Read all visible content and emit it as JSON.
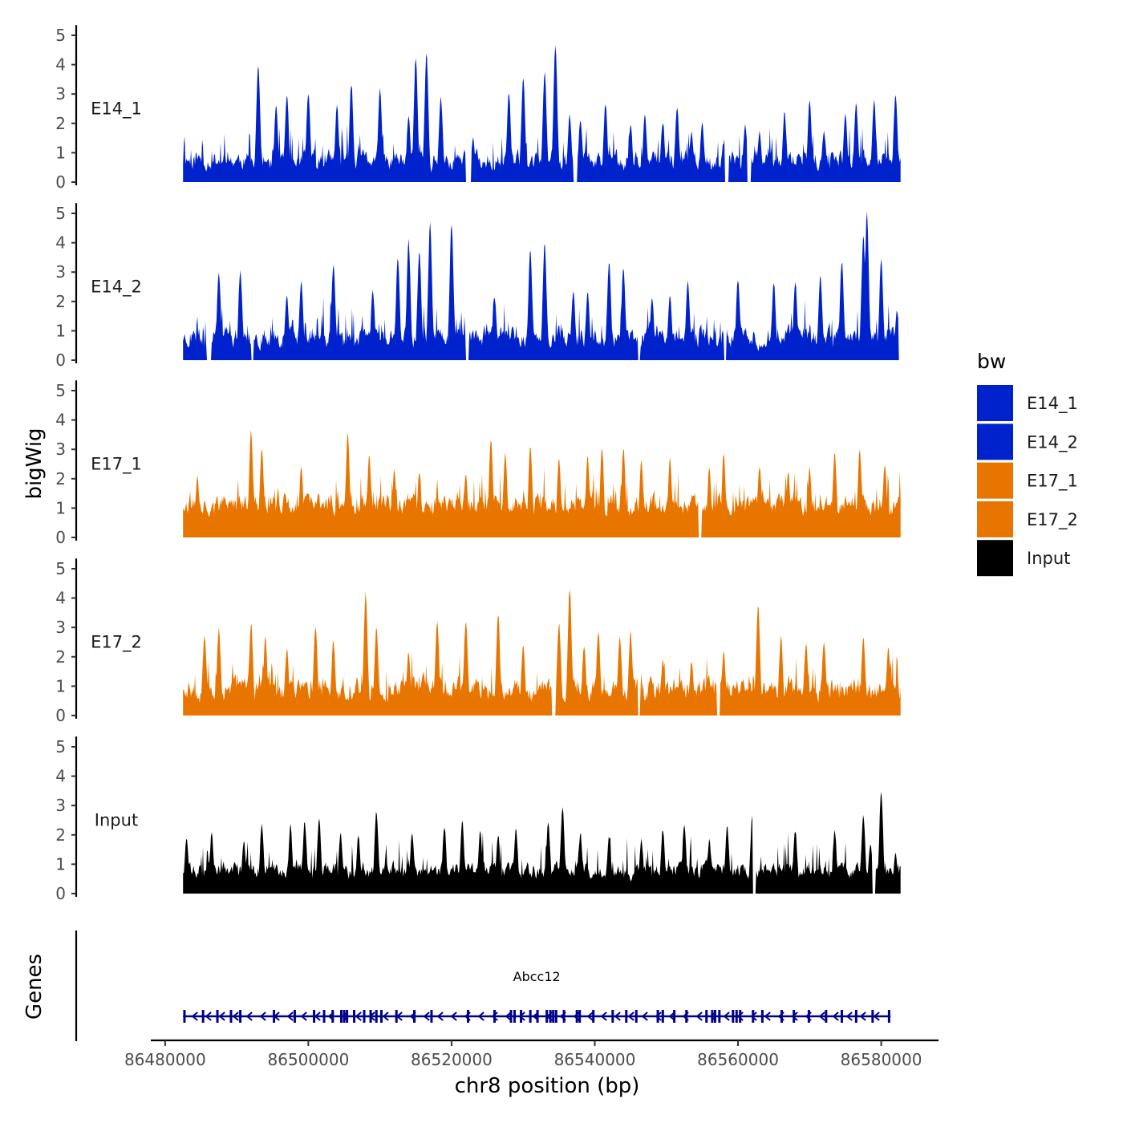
{
  "chart_data": {
    "type": "area",
    "title": "",
    "ylabel": "bigWig",
    "genes_label": "Genes",
    "xlabel": "chr8 position (bp)",
    "xlim": [
      86482500,
      86582700
    ],
    "axis_range": [
      86478000,
      86588000
    ],
    "ylim": [
      0,
      5.2
    ],
    "yticks": [
      0,
      1,
      2,
      3,
      4,
      5
    ],
    "xticks": [
      86480000,
      86500000,
      86520000,
      86540000,
      86560000,
      86580000
    ],
    "tracks": [
      {
        "name": "E14_1",
        "color": "#0022CC",
        "seed": 11,
        "base": 0.75,
        "noise": 0.55,
        "peaks": [
          [
            86493000,
            3.9
          ],
          [
            86495500,
            2.5
          ],
          [
            86497000,
            2.9
          ],
          [
            86500000,
            3.0
          ],
          [
            86504000,
            2.5
          ],
          [
            86506000,
            3.3
          ],
          [
            86510000,
            3.1
          ],
          [
            86514000,
            2.2
          ],
          [
            86515000,
            4.2
          ],
          [
            86516500,
            4.3
          ],
          [
            86518500,
            2.8
          ],
          [
            86523000,
            1.4
          ],
          [
            86528000,
            3.0
          ],
          [
            86530000,
            3.5
          ],
          [
            86533000,
            3.7
          ],
          [
            86534500,
            4.6
          ],
          [
            86536500,
            2.2
          ],
          [
            86538000,
            2.1
          ],
          [
            86541500,
            2.6
          ],
          [
            86545000,
            1.9
          ],
          [
            86547000,
            2.2
          ],
          [
            86549500,
            2.0
          ],
          [
            86551500,
            2.5
          ],
          [
            86553500,
            1.6
          ],
          [
            86555000,
            1.9
          ],
          [
            86558000,
            1.3
          ],
          [
            86561000,
            1.9
          ],
          [
            86563000,
            1.6
          ],
          [
            86566500,
            2.3
          ],
          [
            86570000,
            2.7
          ],
          [
            86572000,
            1.7
          ],
          [
            86575000,
            2.2
          ],
          [
            86576500,
            2.6
          ],
          [
            86579000,
            2.7
          ],
          [
            86582000,
            2.9
          ]
        ],
        "troughs": [
          [
            86522000,
            86522700
          ],
          [
            86537000,
            86537600
          ],
          [
            86558200,
            86558700
          ],
          [
            86561300,
            86561800
          ]
        ]
      },
      {
        "name": "E14_2",
        "color": "#0022CC",
        "seed": 23,
        "base": 0.8,
        "noise": 0.6,
        "peaks": [
          [
            86487500,
            2.9
          ],
          [
            86490500,
            3.0
          ],
          [
            86497000,
            2.1
          ],
          [
            86499000,
            2.6
          ],
          [
            86503500,
            3.2
          ],
          [
            86509000,
            2.3
          ],
          [
            86512500,
            3.4
          ],
          [
            86514000,
            4.0
          ],
          [
            86515500,
            3.7
          ],
          [
            86517000,
            4.6
          ],
          [
            86520000,
            4.6
          ],
          [
            86526000,
            2.1
          ],
          [
            86531000,
            3.7
          ],
          [
            86533000,
            3.9
          ],
          [
            86537000,
            2.3
          ],
          [
            86539000,
            2.2
          ],
          [
            86542000,
            3.3
          ],
          [
            86544000,
            3.1
          ],
          [
            86548000,
            2.0
          ],
          [
            86550500,
            2.1
          ],
          [
            86553000,
            2.6
          ],
          [
            86560000,
            2.7
          ],
          [
            86565000,
            2.6
          ],
          [
            86568000,
            2.6
          ],
          [
            86571500,
            2.8
          ],
          [
            86574500,
            3.3
          ],
          [
            86577500,
            4.2
          ],
          [
            86578000,
            5.0
          ],
          [
            86580000,
            3.4
          ],
          [
            86582200,
            1.6
          ]
        ],
        "troughs": [
          [
            86485800,
            86486400
          ],
          [
            86492000,
            86492400
          ],
          [
            86522000,
            86522400
          ],
          [
            86546000,
            86546400
          ],
          [
            86558000,
            86558400
          ],
          [
            86582400,
            86582700
          ]
        ]
      },
      {
        "name": "E17_1",
        "color": "#E87500",
        "seed": 37,
        "base": 1.15,
        "noise": 0.6,
        "peaks": [
          [
            86484500,
            2.0
          ],
          [
            86492000,
            3.6
          ],
          [
            86493500,
            3.0
          ],
          [
            86499000,
            2.3
          ],
          [
            86505500,
            3.5
          ],
          [
            86508500,
            2.8
          ],
          [
            86512000,
            2.2
          ],
          [
            86515500,
            2.2
          ],
          [
            86522000,
            2.1
          ],
          [
            86525500,
            3.3
          ],
          [
            86527500,
            2.8
          ],
          [
            86531000,
            3.1
          ],
          [
            86535000,
            2.6
          ],
          [
            86539000,
            2.7
          ],
          [
            86541000,
            3.0
          ],
          [
            86544000,
            3.0
          ],
          [
            86546500,
            2.6
          ],
          [
            86550500,
            2.6
          ],
          [
            86556000,
            2.3
          ],
          [
            86558000,
            2.8
          ],
          [
            86563000,
            2.4
          ],
          [
            86567000,
            2.2
          ],
          [
            86570000,
            2.3
          ],
          [
            86573500,
            2.8
          ],
          [
            86577000,
            2.9
          ],
          [
            86580500,
            2.4
          ]
        ],
        "troughs": [
          [
            86554500,
            86554900
          ]
        ]
      },
      {
        "name": "E17_2",
        "color": "#E87500",
        "seed": 53,
        "base": 0.9,
        "noise": 0.65,
        "peaks": [
          [
            86485500,
            2.7
          ],
          [
            86487500,
            2.9
          ],
          [
            86492000,
            3.1
          ],
          [
            86494000,
            2.6
          ],
          [
            86497000,
            2.2
          ],
          [
            86501000,
            3.0
          ],
          [
            86503500,
            2.5
          ],
          [
            86508000,
            4.1
          ],
          [
            86509500,
            2.9
          ],
          [
            86514000,
            2.1
          ],
          [
            86518000,
            3.2
          ],
          [
            86522000,
            3.2
          ],
          [
            86526500,
            3.4
          ],
          [
            86530000,
            2.3
          ],
          [
            86535000,
            3.1
          ],
          [
            86536500,
            4.3
          ],
          [
            86538500,
            2.3
          ],
          [
            86540500,
            2.8
          ],
          [
            86543500,
            2.6
          ],
          [
            86545000,
            2.8
          ],
          [
            86549500,
            1.8
          ],
          [
            86553500,
            1.8
          ],
          [
            86558000,
            2.1
          ],
          [
            86562800,
            3.7
          ],
          [
            86566000,
            2.6
          ],
          [
            86569500,
            2.4
          ],
          [
            86572000,
            2.5
          ],
          [
            86577500,
            2.6
          ],
          [
            86581000,
            2.3
          ]
        ],
        "troughs": [
          [
            86534000,
            86534500
          ],
          [
            86546000,
            86546400
          ],
          [
            86557000,
            86557500
          ]
        ]
      },
      {
        "name": "Input",
        "color": "#000000",
        "seed": 71,
        "base": 0.8,
        "noise": 0.45,
        "peaks": [
          [
            86483000,
            1.8
          ],
          [
            86486500,
            2.0
          ],
          [
            86491000,
            1.7
          ],
          [
            86493500,
            2.3
          ],
          [
            86497500,
            2.3
          ],
          [
            86499500,
            2.4
          ],
          [
            86501500,
            2.5
          ],
          [
            86504500,
            2.0
          ],
          [
            86507000,
            1.9
          ],
          [
            86509500,
            2.7
          ],
          [
            86514500,
            2.0
          ],
          [
            86519000,
            2.2
          ],
          [
            86521500,
            2.4
          ],
          [
            86524000,
            2.1
          ],
          [
            86526500,
            1.9
          ],
          [
            86529000,
            2.1
          ],
          [
            86533500,
            2.4
          ],
          [
            86535500,
            2.9
          ],
          [
            86538000,
            2.0
          ],
          [
            86542000,
            1.9
          ],
          [
            86546500,
            1.8
          ],
          [
            86549500,
            2.1
          ],
          [
            86552500,
            2.3
          ],
          [
            86556000,
            1.8
          ],
          [
            86558500,
            2.2
          ],
          [
            86562000,
            2.6
          ],
          [
            86568000,
            2.1
          ],
          [
            86573500,
            2.1
          ],
          [
            86577500,
            2.6
          ],
          [
            86578500,
            1.6
          ],
          [
            86580000,
            3.4
          ],
          [
            86582000,
            1.3
          ]
        ],
        "troughs": [
          [
            86562000,
            86562500
          ],
          [
            86578800,
            86579200
          ]
        ]
      }
    ],
    "legend": {
      "title": "bw",
      "entries": [
        {
          "label": "E14_1",
          "color": "#0022CC"
        },
        {
          "label": "E14_2",
          "color": "#0022CC"
        },
        {
          "label": "E17_1",
          "color": "#E87500"
        },
        {
          "label": "E17_2",
          "color": "#E87500"
        },
        {
          "label": "Input",
          "color": "#000000"
        }
      ]
    },
    "gene": {
      "name": "Abcc12",
      "start": 86482500,
      "end": 86581300,
      "strand": "-",
      "color": "#00008B",
      "exons": [
        86482700,
        86485300,
        86487300,
        86489200,
        86490500,
        86495200,
        86498100,
        86500800,
        86502200,
        86503400,
        86504600,
        86505000,
        86505400,
        86506400,
        86507800,
        86508700,
        86509500,
        86510200,
        86512300,
        86514800,
        86517200,
        86522300,
        86526000,
        86528300,
        86528800,
        86529700,
        86531000,
        86532000,
        86533300,
        86533800,
        86534200,
        86534600,
        86535700,
        86537500,
        86537900,
        86539800,
        86542500,
        86544400,
        86545800,
        86548800,
        86549500,
        86551100,
        86552800,
        86555600,
        86556400,
        86556800,
        86557400,
        86559300,
        86559800,
        86560300,
        86562100,
        86563400,
        86566100,
        86567800,
        86569900,
        86572300,
        86574500,
        86576500,
        86578800,
        86581100
      ]
    }
  }
}
